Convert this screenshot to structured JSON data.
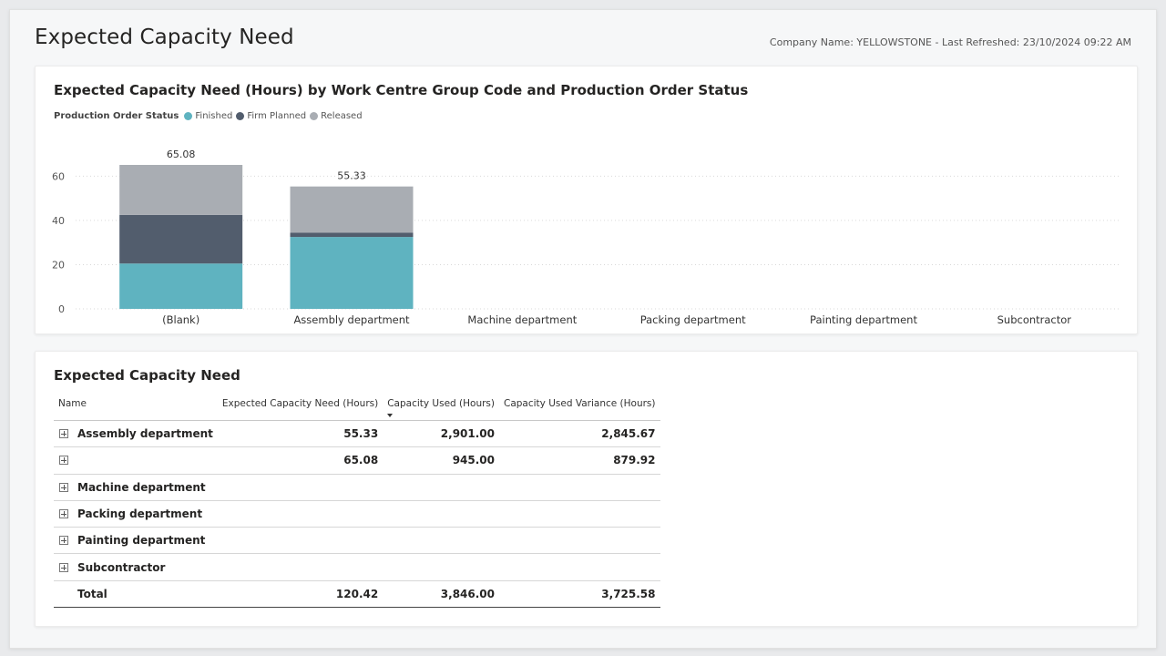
{
  "header": {
    "title": "Expected Capacity Need",
    "subtitle": "Company Name: YELLOWSTONE - Last Refreshed: 23/10/2024 09:22 AM"
  },
  "chart_card": {
    "title": "Expected Capacity Need (Hours) by Work Centre Group Code and Production Order Status",
    "legend_title": "Production Order Status"
  },
  "chart_data": {
    "type": "bar",
    "stacked": true,
    "title": "Expected Capacity Need (Hours) by Work Centre Group Code and Production Order Status",
    "legend_title": "Production Order Status",
    "categories": [
      "(Blank)",
      "Assembly department",
      "Machine department",
      "Packing department",
      "Painting department",
      "Subcontractor"
    ],
    "series": [
      {
        "name": "Finished",
        "color": "#5fb3c0",
        "values": [
          20.5,
          32.5,
          0,
          0,
          0,
          0
        ]
      },
      {
        "name": "Firm Planned",
        "color": "#525d6d",
        "values": [
          22.0,
          2.0,
          0,
          0,
          0,
          0
        ]
      },
      {
        "name": "Released",
        "color": "#a9adb3",
        "values": [
          22.58,
          20.83,
          0,
          0,
          0,
          0
        ]
      }
    ],
    "totals": [
      "65.08",
      "55.33",
      "",
      "",
      "",
      ""
    ],
    "yticks": [
      "0",
      "20",
      "40",
      "60"
    ],
    "ylim": [
      0,
      65.08
    ],
    "grid": true,
    "legend_position": "top-left"
  },
  "matrix": {
    "title": "Expected Capacity Need",
    "columns": {
      "name": "Name",
      "need": "Expected Capacity Need (Hours)",
      "used": "Capacity Used (Hours)",
      "variance": "Capacity Used Variance (Hours)"
    },
    "rows": [
      {
        "name": "Assembly department",
        "need": "55.33",
        "used": "2,901.00",
        "variance": "2,845.67"
      },
      {
        "name": "",
        "need": "65.08",
        "used": "945.00",
        "variance": "879.92"
      },
      {
        "name": "Machine department",
        "need": "",
        "used": "",
        "variance": ""
      },
      {
        "name": "Packing department",
        "need": "",
        "used": "",
        "variance": ""
      },
      {
        "name": "Painting department",
        "need": "",
        "used": "",
        "variance": ""
      },
      {
        "name": "Subcontractor",
        "need": "",
        "used": "",
        "variance": ""
      }
    ],
    "total": {
      "name": "Total",
      "need": "120.42",
      "used": "3,846.00",
      "variance": "3,725.58"
    }
  },
  "icons": {
    "expand": "plus-box-icon",
    "sort": "sort-descending-icon"
  }
}
